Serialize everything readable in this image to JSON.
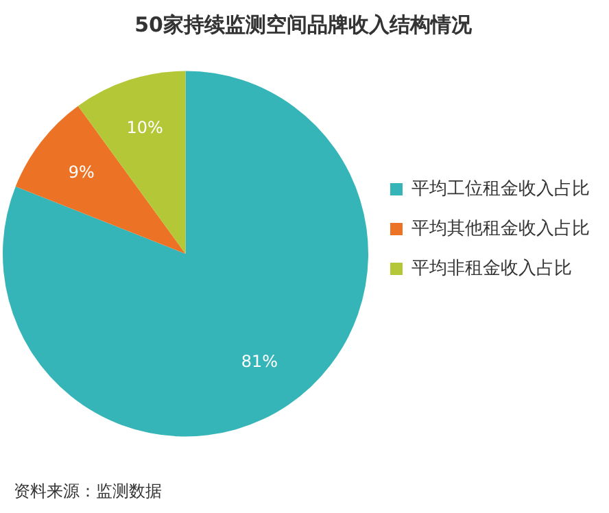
{
  "chart_data": {
    "type": "pie",
    "title": "50家持续监测空间品牌收入结构情况",
    "categories": [
      "平均工位租金收入占比",
      "平均其他租金收入占比",
      "平均非租金收入占比"
    ],
    "values": [
      81,
      9,
      10
    ],
    "colors": [
      "#36b5b8",
      "#ec7326",
      "#b3c737"
    ],
    "value_labels": [
      "81%",
      "9%",
      "10%"
    ],
    "legend": "right",
    "annotations": [
      "资料来源：监测数据"
    ]
  }
}
